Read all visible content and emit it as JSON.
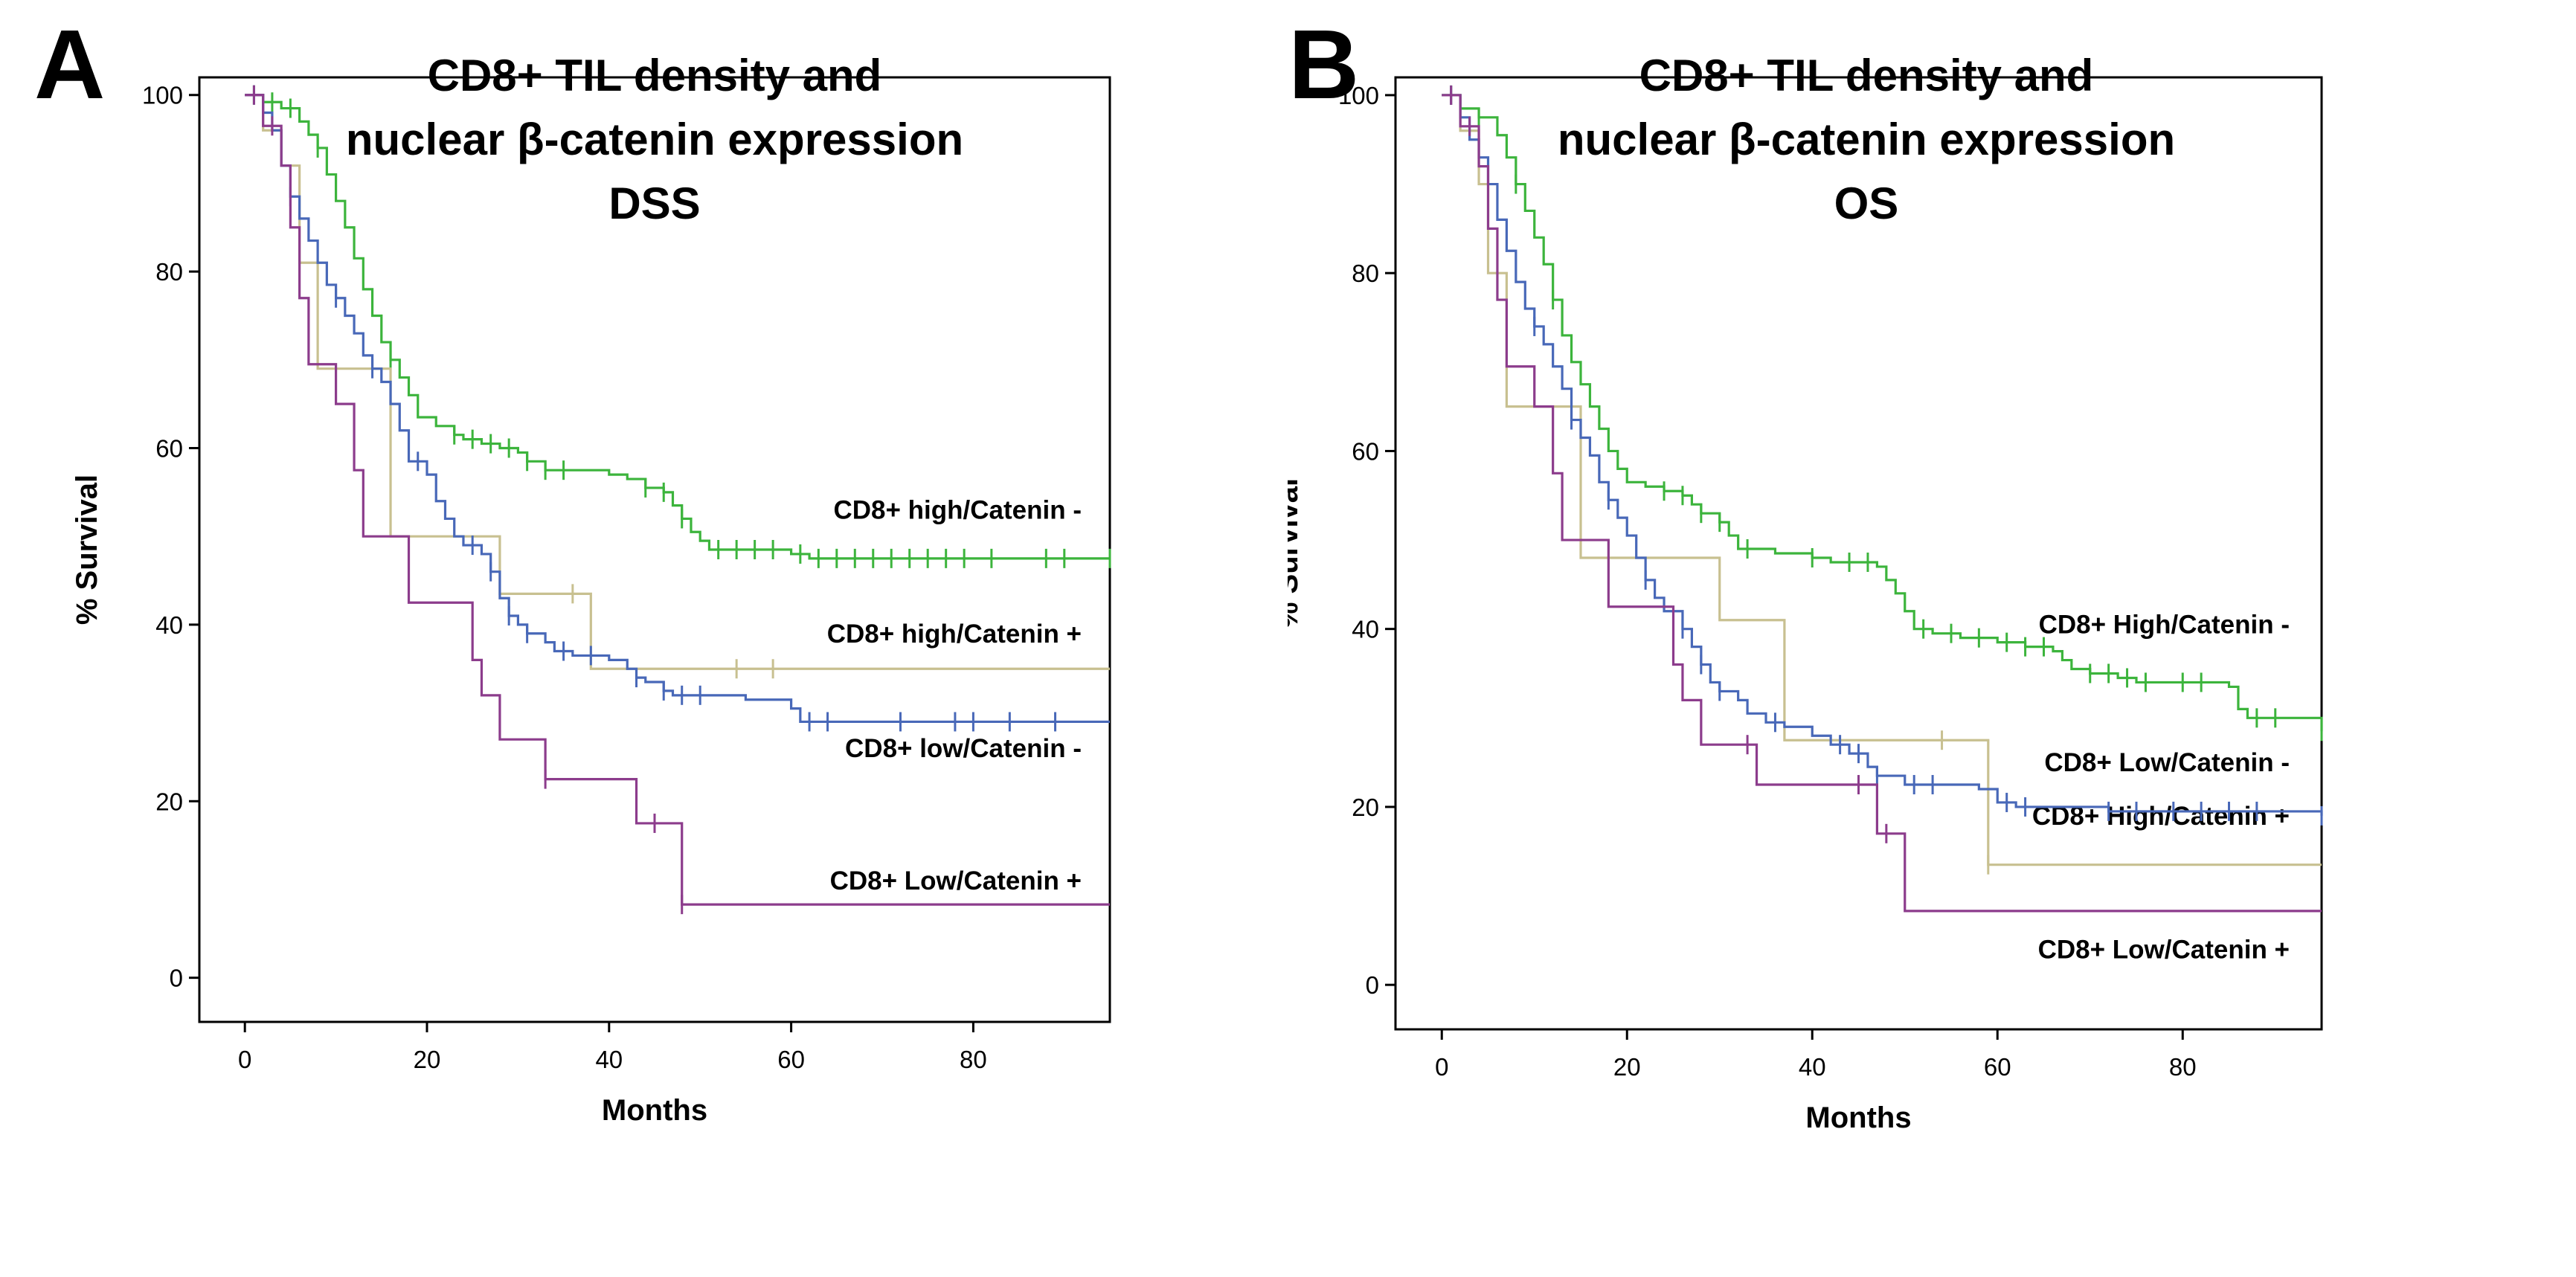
{
  "chart_data": [
    {
      "panel": "A",
      "type": "line",
      "title_lines": [
        "CD8+ TIL density and",
        "nuclear β-catenin expression",
        "DSS"
      ],
      "xlabel": "Months",
      "ylabel": "% Survival",
      "xlim": [
        -5,
        95
      ],
      "ylim": [
        -5,
        102
      ],
      "xticks": [
        0,
        20,
        40,
        60,
        80
      ],
      "yticks": [
        0,
        20,
        40,
        60,
        80,
        100
      ],
      "series": [
        {
          "name": "CD8+ high/Catenin -",
          "color": "#3cb43c",
          "label_value": 53,
          "steps": [
            [
              0,
              100
            ],
            [
              2,
              99.2
            ],
            [
              4,
              98.5
            ],
            [
              6,
              97
            ],
            [
              7,
              95.5
            ],
            [
              8,
              94
            ],
            [
              9,
              91
            ],
            [
              10,
              88
            ],
            [
              11,
              85
            ],
            [
              12,
              81.5
            ],
            [
              13,
              78
            ],
            [
              14,
              75
            ],
            [
              15,
              72
            ],
            [
              16,
              70
            ],
            [
              17,
              68
            ],
            [
              18,
              66
            ],
            [
              19,
              63.5
            ],
            [
              21,
              62.5
            ],
            [
              23,
              61.5
            ],
            [
              24,
              61
            ],
            [
              26,
              60.5
            ],
            [
              28,
              60
            ],
            [
              30,
              59.5
            ],
            [
              31,
              58.5
            ],
            [
              33,
              57.5
            ],
            [
              40,
              57
            ],
            [
              42,
              56.5
            ],
            [
              44,
              55.5
            ],
            [
              46,
              55
            ],
            [
              47,
              53.5
            ],
            [
              48,
              52
            ],
            [
              49,
              50.5
            ],
            [
              50,
              49.5
            ],
            [
              51,
              48.5
            ],
            [
              60,
              48
            ],
            [
              62,
              47.5
            ],
            [
              95,
              47.5
            ]
          ],
          "censor": [
            1,
            3,
            5,
            8,
            16,
            23,
            25,
            27,
            29,
            31,
            33,
            35,
            44,
            46,
            48,
            52,
            54,
            56,
            58,
            61,
            63,
            65,
            67,
            69,
            71,
            73,
            75,
            77,
            79,
            82,
            88,
            90,
            95
          ]
        },
        {
          "name": "CD8+ high/Catenin +",
          "color": "#c8c090",
          "label_value": 39,
          "steps": [
            [
              0,
              100
            ],
            [
              2,
              96
            ],
            [
              4,
              92
            ],
            [
              6,
              81
            ],
            [
              8,
              69
            ],
            [
              16,
              50
            ],
            [
              28,
              43.5
            ],
            [
              38,
              35
            ],
            [
              95,
              35
            ]
          ],
          "censor": [
            1,
            36,
            54,
            58
          ]
        },
        {
          "name": "CD8+ low/Catenin -",
          "color": "#4868b8",
          "label_value": 26,
          "steps": [
            [
              0,
              100
            ],
            [
              2,
              98
            ],
            [
              3,
              96
            ],
            [
              4,
              92
            ],
            [
              5,
              88.5
            ],
            [
              6,
              86
            ],
            [
              7,
              83.5
            ],
            [
              8,
              81
            ],
            [
              9,
              78.5
            ],
            [
              10,
              77
            ],
            [
              11,
              75
            ],
            [
              12,
              73
            ],
            [
              13,
              70.5
            ],
            [
              14,
              69
            ],
            [
              15,
              67.5
            ],
            [
              16,
              65
            ],
            [
              17,
              62
            ],
            [
              18,
              58.5
            ],
            [
              20,
              57
            ],
            [
              21,
              54
            ],
            [
              22,
              52
            ],
            [
              23,
              50
            ],
            [
              24,
              49
            ],
            [
              26,
              48
            ],
            [
              27,
              46
            ],
            [
              28,
              43
            ],
            [
              29,
              41
            ],
            [
              30,
              40
            ],
            [
              31,
              39
            ],
            [
              33,
              38
            ],
            [
              34,
              37
            ],
            [
              36,
              36.5
            ],
            [
              40,
              36
            ],
            [
              42,
              35
            ],
            [
              43,
              34
            ],
            [
              44,
              33.5
            ],
            [
              46,
              32.5
            ],
            [
              47,
              32
            ],
            [
              55,
              31.5
            ],
            [
              60,
              30.5
            ],
            [
              61,
              29
            ],
            [
              95,
              29
            ]
          ],
          "censor": [
            1,
            5,
            10,
            14,
            19,
            25,
            27,
            29,
            31,
            35,
            38,
            43,
            46,
            48,
            50,
            62,
            64,
            72,
            78,
            80,
            84,
            89
          ]
        },
        {
          "name": "CD8+ Low/Catenin +",
          "color": "#8c3c8c",
          "label_value": 11,
          "steps": [
            [
              0,
              100
            ],
            [
              2,
              96.5
            ],
            [
              4,
              92
            ],
            [
              5,
              85
            ],
            [
              6,
              77
            ],
            [
              7,
              69.5
            ],
            [
              10,
              65
            ],
            [
              12,
              57.5
            ],
            [
              13,
              50
            ],
            [
              18,
              42.5
            ],
            [
              25,
              36
            ],
            [
              26,
              32
            ],
            [
              28,
              27
            ],
            [
              33,
              22.5
            ],
            [
              43,
              17.5
            ],
            [
              48,
              8.3
            ],
            [
              95,
              8.3
            ]
          ],
          "censor": [
            1,
            3,
            33,
            45,
            48
          ]
        }
      ]
    },
    {
      "panel": "B",
      "type": "line",
      "title_lines": [
        "CD8+ TIL density and",
        "nuclear β-catenin expression",
        "OS"
      ],
      "xlabel": "Months",
      "ylabel": "% Survival",
      "xlim": [
        -5,
        95
      ],
      "ylim": [
        -5,
        102
      ],
      "xticks": [
        0,
        20,
        40,
        60,
        80
      ],
      "yticks": [
        0,
        20,
        40,
        60,
        80,
        100
      ],
      "series": [
        {
          "name": "CD8+ High/Catenin -",
          "color": "#3cb43c",
          "label_value": 40.5,
          "steps": [
            [
              0,
              100
            ],
            [
              2,
              98.5
            ],
            [
              4,
              97.5
            ],
            [
              6,
              95.5
            ],
            [
              7,
              93
            ],
            [
              8,
              90
            ],
            [
              9,
              87
            ],
            [
              10,
              84
            ],
            [
              11,
              81
            ],
            [
              12,
              77
            ],
            [
              13,
              73
            ],
            [
              14,
              70
            ],
            [
              15,
              67.5
            ],
            [
              16,
              65
            ],
            [
              17,
              62.5
            ],
            [
              18,
              60
            ],
            [
              19,
              58
            ],
            [
              20,
              56.5
            ],
            [
              22,
              56
            ],
            [
              24,
              55.5
            ],
            [
              26,
              55
            ],
            [
              27,
              54
            ],
            [
              28,
              53
            ],
            [
              30,
              52
            ],
            [
              31,
              50.5
            ],
            [
              32,
              49
            ],
            [
              36,
              48.5
            ],
            [
              40,
              48
            ],
            [
              42,
              47.5
            ],
            [
              47,
              47
            ],
            [
              48,
              45.5
            ],
            [
              49,
              44
            ],
            [
              50,
              42
            ],
            [
              51,
              40
            ],
            [
              53,
              39.5
            ],
            [
              56,
              39
            ],
            [
              60,
              38.5
            ],
            [
              63,
              38
            ],
            [
              66,
              37.5
            ],
            [
              67,
              36.5
            ],
            [
              68,
              35.5
            ],
            [
              70,
              35
            ],
            [
              73,
              34.5
            ],
            [
              75,
              34
            ],
            [
              85,
              33.5
            ],
            [
              86,
              31
            ],
            [
              87,
              30
            ],
            [
              95,
              28.5
            ]
          ],
          "censor": [
            1,
            4,
            8,
            12,
            24,
            26,
            28,
            30,
            33,
            40,
            44,
            46,
            52,
            55,
            58,
            61,
            63,
            65,
            70,
            72,
            74,
            76,
            80,
            82,
            88,
            90,
            95
          ]
        },
        {
          "name": "CD8+ High/Catenin +",
          "color": "#c8c090",
          "label_value": 19,
          "steps": [
            [
              0,
              100
            ],
            [
              2,
              96
            ],
            [
              4,
              90
            ],
            [
              5,
              80
            ],
            [
              7,
              65
            ],
            [
              15,
              48
            ],
            [
              30,
              41
            ],
            [
              37,
              27.5
            ],
            [
              59,
              13.5
            ],
            [
              95,
              13.5
            ]
          ],
          "censor": [
            1,
            54,
            59
          ]
        },
        {
          "name": "CD8+ Low/Catenin -",
          "color": "#4868b8",
          "label_value": 25,
          "steps": [
            [
              0,
              100
            ],
            [
              2,
              97.5
            ],
            [
              3,
              95
            ],
            [
              4,
              93
            ],
            [
              5,
              90
            ],
            [
              6,
              86
            ],
            [
              7,
              82.5
            ],
            [
              8,
              79
            ],
            [
              9,
              76
            ],
            [
              10,
              74
            ],
            [
              11,
              72
            ],
            [
              12,
              69.5
            ],
            [
              13,
              67
            ],
            [
              14,
              63.5
            ],
            [
              15,
              61.5
            ],
            [
              16,
              59.5
            ],
            [
              17,
              56.5
            ],
            [
              18,
              54.5
            ],
            [
              19,
              52.5
            ],
            [
              20,
              50.5
            ],
            [
              21,
              48
            ],
            [
              22,
              45.5
            ],
            [
              23,
              43.5
            ],
            [
              24,
              42
            ],
            [
              26,
              40
            ],
            [
              27,
              38
            ],
            [
              28,
              36
            ],
            [
              29,
              34
            ],
            [
              30,
              33
            ],
            [
              32,
              32
            ],
            [
              33,
              30.5
            ],
            [
              35,
              29.5
            ],
            [
              37,
              29
            ],
            [
              40,
              28
            ],
            [
              42,
              27
            ],
            [
              44,
              26
            ],
            [
              46,
              24.5
            ],
            [
              47,
              23.5
            ],
            [
              50,
              22.5
            ],
            [
              58,
              22
            ],
            [
              60,
              20.5
            ],
            [
              62,
              20
            ],
            [
              72,
              19.5
            ],
            [
              95,
              19
            ]
          ],
          "censor": [
            1,
            5,
            10,
            14,
            18,
            22,
            26,
            28,
            30,
            36,
            43,
            45,
            47,
            51,
            53,
            61,
            63,
            72,
            75,
            79,
            82,
            85,
            88,
            95
          ]
        },
        {
          "name": "CD8+ Low/Catenin +",
          "color": "#8c3c8c",
          "label_value": 4,
          "steps": [
            [
              0,
              100
            ],
            [
              2,
              96.5
            ],
            [
              4,
              92
            ],
            [
              5,
              85
            ],
            [
              6,
              77
            ],
            [
              7,
              69.5
            ],
            [
              10,
              65
            ],
            [
              12,
              57.5
            ],
            [
              13,
              50
            ],
            [
              18,
              42.5
            ],
            [
              25,
              36
            ],
            [
              26,
              32
            ],
            [
              28,
              27
            ],
            [
              34,
              22.5
            ],
            [
              44,
              22.5
            ],
            [
              47,
              17
            ],
            [
              50,
              8.3
            ],
            [
              95,
              8.3
            ]
          ],
          "censor": [
            1,
            3,
            33,
            45,
            48
          ]
        }
      ]
    }
  ]
}
